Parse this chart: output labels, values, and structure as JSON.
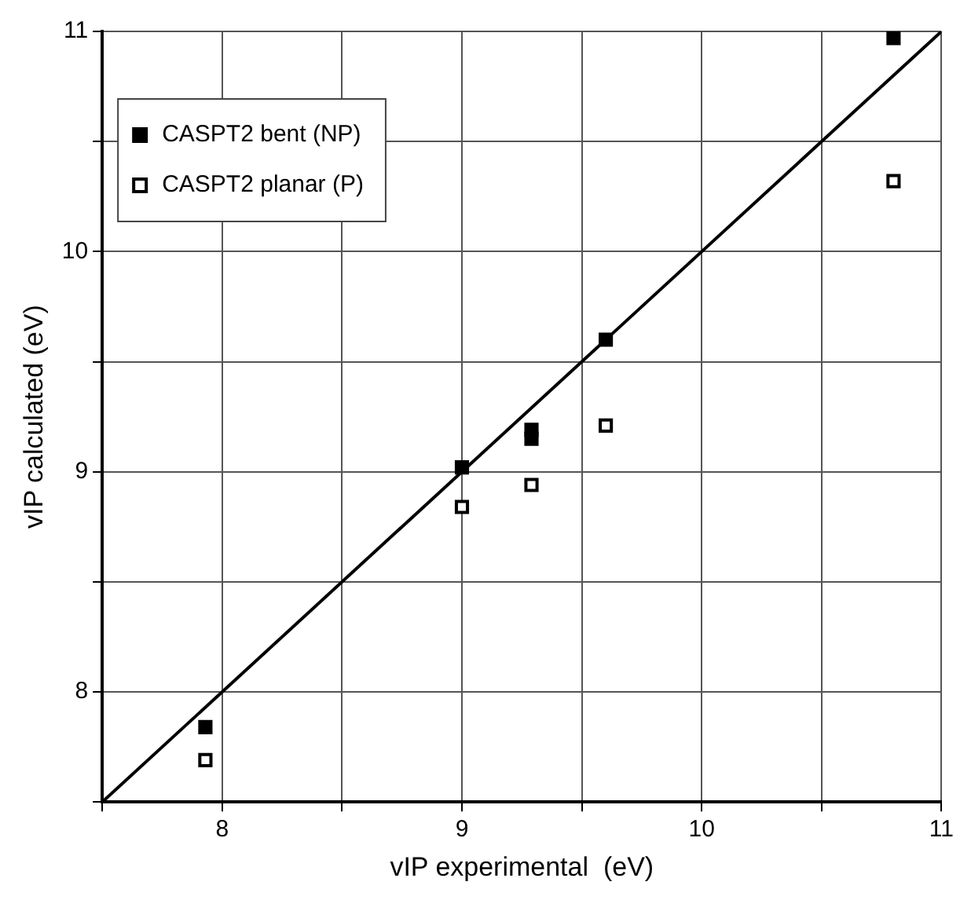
{
  "chart_data": {
    "type": "scatter",
    "xlabel": "vIP experimental  (eV)",
    "ylabel": "vIP calculated (eV)",
    "xlim": [
      7.5,
      11
    ],
    "ylim": [
      7.5,
      11
    ],
    "xticks": [
      {
        "value": 7.5,
        "label": null
      },
      8,
      {
        "value": 8.5,
        "label": null
      },
      9,
      {
        "value": 9.5,
        "label": null
      },
      10,
      {
        "value": 10.5,
        "label": null
      },
      11
    ],
    "yticks": [
      {
        "value": 7.5,
        "label": null
      },
      8,
      {
        "value": 8.5,
        "label": null
      },
      9,
      {
        "value": 9.5,
        "label": null
      },
      10,
      {
        "value": 10.5,
        "label": null
      },
      11
    ],
    "grid": true,
    "legend": "top left",
    "marker": "square",
    "series": [
      {
        "name": "CASPT2 bent (NP)",
        "color": "#000000",
        "x": [
          7.93,
          9.0,
          9.29,
          9.29,
          9.6,
          10.8
        ],
        "values": [
          7.84,
          9.02,
          9.19,
          9.15,
          9.6,
          10.97
        ]
      },
      {
        "name": "CASPT2 planar (P)",
        "color": "#000000",
        "x": [
          7.93,
          9.0,
          9.29,
          9.6,
          10.8
        ],
        "values": [
          7.69,
          8.84,
          8.94,
          9.21,
          10.32
        ]
      },
      {
        "type": "line",
        "color": "#000000",
        "x": [
          7.5,
          11
        ],
        "values": [
          7.5,
          11
        ],
        "marker": "none",
        "line_style": "solid"
      }
    ]
  }
}
